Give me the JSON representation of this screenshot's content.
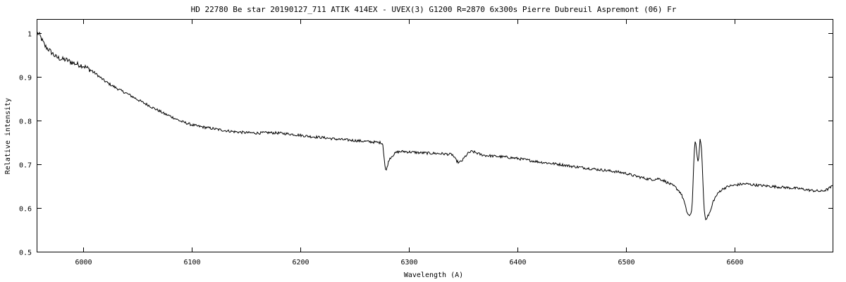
{
  "chart_data": {
    "type": "line",
    "title": "HD 22780 Be star   20190127_711    ATIK 414EX - UVEX(3)  G1200  R=2870   6x300s    Pierre Dubreuil  Aspremont (06) Fr",
    "xlabel": "Wavelength (A)",
    "ylabel": "Relative intensity",
    "xlim": [
      5958,
      6690
    ],
    "ylim": [
      0.5,
      1.03
    ],
    "x_ticks": [
      6000,
      6100,
      6200,
      6300,
      6400,
      6500,
      6600
    ],
    "y_ticks": [
      0.5,
      0.6,
      0.7,
      0.8,
      0.9,
      1.0
    ],
    "y_tick_labels": [
      "0.5",
      "0.6",
      "0.7",
      "0.8",
      "0.9",
      "1"
    ],
    "grid": false,
    "line_color": "#000000",
    "series": [
      {
        "x": [
          5958,
          5960,
          5962,
          5965,
          5970,
          5975,
          5980,
          5985,
          5990,
          5995,
          6000,
          6005,
          6010,
          6015,
          6020,
          6025,
          6030,
          6035,
          6040,
          6045,
          6050,
          6055,
          6060,
          6065,
          6070,
          6075,
          6080,
          6085,
          6090,
          6095,
          6100,
          6105,
          6110,
          6120,
          6130,
          6140,
          6150,
          6160,
          6170,
          6180,
          6190,
          6200,
          6210,
          6220,
          6230,
          6240,
          6250,
          6260,
          6270,
          6275,
          6276,
          6277,
          6278,
          6279,
          6280,
          6282,
          6285,
          6288,
          6290,
          6295,
          6300,
          6310,
          6320,
          6330,
          6340,
          6343,
          6346,
          6349,
          6352,
          6355,
          6358,
          6362,
          6366,
          6370,
          6375,
          6380,
          6390,
          6400,
          6410,
          6420,
          6430,
          6440,
          6450,
          6460,
          6470,
          6480,
          6490,
          6500,
          6505,
          6510,
          6515,
          6520,
          6525,
          6530,
          6535,
          6540,
          6545,
          6550,
          6553,
          6555,
          6556,
          6558,
          6559,
          6560,
          6561,
          6562,
          6563,
          6564,
          6565,
          6566,
          6567,
          6568,
          6569,
          6570,
          6571,
          6572,
          6573,
          6575,
          6578,
          6580,
          6583,
          6586,
          6590,
          6595,
          6600,
          6605,
          6610,
          6620,
          6630,
          6640,
          6650,
          6660,
          6670,
          6680,
          6685,
          6690
        ],
        "y": [
          1.0,
          0.995,
          0.985,
          0.97,
          0.958,
          0.945,
          0.94,
          0.938,
          0.932,
          0.928,
          0.925,
          0.918,
          0.91,
          0.9,
          0.89,
          0.882,
          0.875,
          0.868,
          0.862,
          0.855,
          0.848,
          0.841,
          0.835,
          0.828,
          0.822,
          0.815,
          0.81,
          0.804,
          0.798,
          0.794,
          0.79,
          0.787,
          0.785,
          0.781,
          0.777,
          0.774,
          0.772,
          0.771,
          0.772,
          0.771,
          0.769,
          0.766,
          0.763,
          0.761,
          0.758,
          0.756,
          0.754,
          0.752,
          0.75,
          0.749,
          0.745,
          0.72,
          0.695,
          0.682,
          0.695,
          0.712,
          0.72,
          0.726,
          0.728,
          0.729,
          0.728,
          0.726,
          0.725,
          0.724,
          0.722,
          0.71,
          0.703,
          0.708,
          0.718,
          0.726,
          0.729,
          0.726,
          0.722,
          0.72,
          0.719,
          0.718,
          0.716,
          0.713,
          0.709,
          0.705,
          0.702,
          0.699,
          0.695,
          0.692,
          0.689,
          0.686,
          0.683,
          0.679,
          0.675,
          0.672,
          0.669,
          0.666,
          0.665,
          0.667,
          0.662,
          0.655,
          0.648,
          0.635,
          0.618,
          0.598,
          0.59,
          0.582,
          0.582,
          0.588,
          0.62,
          0.69,
          0.748,
          0.752,
          0.72,
          0.705,
          0.72,
          0.755,
          0.75,
          0.7,
          0.635,
          0.59,
          0.575,
          0.58,
          0.595,
          0.615,
          0.628,
          0.638,
          0.645,
          0.65,
          0.652,
          0.654,
          0.655,
          0.652,
          0.65,
          0.648,
          0.646,
          0.644,
          0.64,
          0.638,
          0.642,
          0.65
        ]
      }
    ]
  }
}
